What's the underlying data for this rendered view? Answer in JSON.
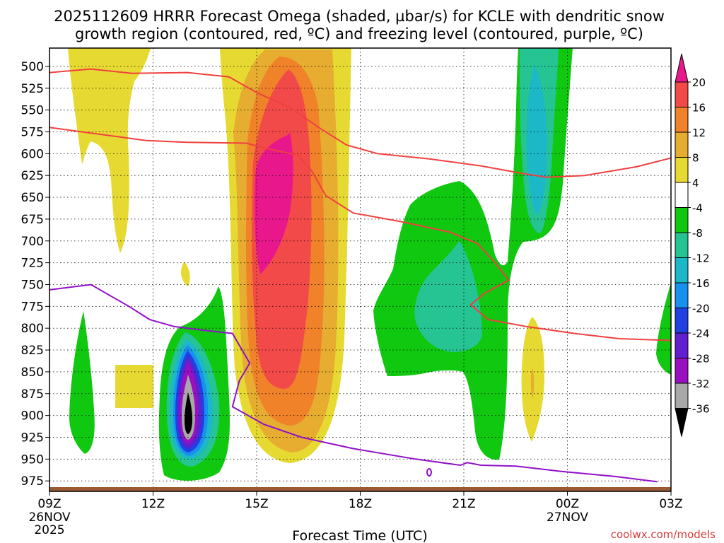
{
  "chart_data": {
    "type": "heatmap",
    "title_line1": "2025112609 HRRR Forecast Omega (shaded, µbar/s) for KCLE with dendritic snow",
    "title_line2": "growth region (contoured, red, ºC) and freezing level (contoured, purple, ºC)",
    "xlabel": "Forecast Time (UTC)",
    "ylabel": "",
    "credit": "coolwx.com/models",
    "x_range_hours": [
      0,
      18
    ],
    "x_ticks": [
      {
        "hour": 0,
        "label": "09Z",
        "sub1": "26NOV",
        "sub2": "2025"
      },
      {
        "hour": 3,
        "label": "12Z"
      },
      {
        "hour": 6,
        "label": "15Z"
      },
      {
        "hour": 9,
        "label": "18Z"
      },
      {
        "hour": 12,
        "label": "21Z"
      },
      {
        "hour": 15,
        "label": "00Z",
        "sub1": "27NOV"
      },
      {
        "hour": 18,
        "label": "03Z"
      }
    ],
    "y_range_mb": [
      987,
      479
    ],
    "y_ticks": [
      500,
      525,
      550,
      575,
      600,
      625,
      650,
      675,
      700,
      725,
      750,
      775,
      800,
      825,
      850,
      875,
      900,
      925,
      950,
      975
    ],
    "colorbar_labels": [
      "20",
      "16",
      "12",
      "8",
      "4",
      "-4",
      "-8",
      "-12",
      "-16",
      "-20",
      "-24",
      "-28",
      "-32",
      "-36"
    ],
    "colorbar_colors": {
      "above_20": "#e8188c",
      "16_20": "#f24a48",
      "12_16": "#f0822a",
      "8_12": "#e6ad30",
      "4_8": "#e6da32",
      "neg4_4": "#ffffff",
      "neg8_neg4": "#10c810",
      "neg12_neg8": "#26c492",
      "neg16_neg12": "#1cb8c8",
      "neg20_neg16": "#1890f0",
      "neg24_neg20": "#2040e0",
      "neg28_neg24": "#6020d0",
      "neg32_neg28": "#9a10c0",
      "neg36_neg32": "#a8a8a8",
      "below_neg36": "#000000"
    },
    "contour_colors": {
      "dendritic": "#f04040",
      "freezing": "#9010c8",
      "ground": "#9a5a32"
    },
    "dendritic_upper_line": [
      [
        0,
        507
      ],
      [
        1.2,
        503
      ],
      [
        2.4,
        508
      ],
      [
        4.0,
        507
      ],
      [
        5.2,
        512
      ],
      [
        6.0,
        530
      ],
      [
        7.0,
        548
      ],
      [
        7.8,
        570
      ],
      [
        8.6,
        590
      ],
      [
        9.5,
        600
      ],
      [
        11.0,
        606
      ],
      [
        12.5,
        614
      ],
      [
        13.6,
        622
      ],
      [
        14.4,
        627
      ],
      [
        15.5,
        625
      ],
      [
        17.0,
        615
      ],
      [
        18.0,
        605
      ]
    ],
    "dendritic_lower_line": [
      [
        0,
        570
      ],
      [
        2.8,
        585
      ],
      [
        4.0,
        587
      ],
      [
        5.7,
        588
      ],
      [
        6.4,
        595
      ],
      [
        7.2,
        602
      ],
      [
        7.6,
        620
      ],
      [
        8.0,
        648
      ],
      [
        8.8,
        668
      ],
      [
        10.2,
        678
      ],
      [
        11.6,
        690
      ],
      [
        12.4,
        703
      ],
      [
        12.9,
        725
      ],
      [
        13.3,
        745
      ],
      [
        12.6,
        760
      ],
      [
        12.2,
        773
      ],
      [
        12.7,
        790
      ],
      [
        13.8,
        798
      ],
      [
        15.2,
        806
      ],
      [
        16.5,
        812
      ],
      [
        18.0,
        814
      ]
    ],
    "freezing_line": [
      [
        0,
        756
      ],
      [
        1.2,
        750
      ],
      [
        2.3,
        775
      ],
      [
        2.9,
        790
      ],
      [
        3.6,
        798
      ],
      [
        4.4,
        802
      ],
      [
        5.3,
        806
      ],
      [
        5.8,
        840
      ],
      [
        5.5,
        860
      ],
      [
        5.3,
        890
      ],
      [
        6.2,
        910
      ],
      [
        7.3,
        925
      ],
      [
        8.8,
        938
      ],
      [
        10.6,
        950
      ],
      [
        11.9,
        957
      ],
      [
        12.1,
        954
      ],
      [
        12.5,
        957
      ],
      [
        13.5,
        958
      ],
      [
        14.8,
        964
      ],
      [
        16.4,
        970
      ],
      [
        17.6,
        976
      ]
    ]
  }
}
